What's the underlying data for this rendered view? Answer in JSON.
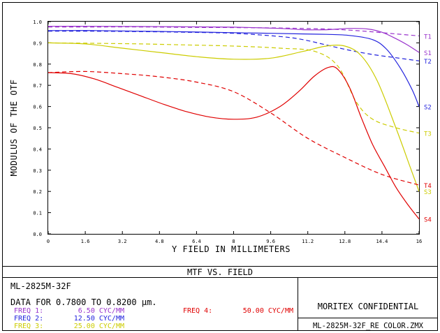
{
  "chart_data": {
    "type": "line",
    "title": "MTF VS. FIELD",
    "xlabel": "Y FIELD IN MILLIMETERS",
    "ylabel": "MODULUS OF THE OTF",
    "xlim": [
      0,
      16
    ],
    "ylim": [
      0,
      1.0
    ],
    "x_ticks": [
      "0",
      "1.6",
      "3.2",
      "4.8",
      "6.4",
      "8",
      "9.6",
      "11.2",
      "12.8",
      "14.4",
      "16"
    ],
    "y_ticks": [
      "0.0",
      "0.1",
      "0.2",
      "0.3",
      "0.4",
      "0.5",
      "0.6",
      "0.7",
      "0.8",
      "0.9",
      "1.0"
    ],
    "grid": false,
    "series": [
      {
        "name": "T1",
        "color": "#9933cc",
        "dash": true,
        "x": [
          0,
          2,
          4,
          6,
          8,
          10,
          12,
          13,
          14,
          15,
          16
        ],
        "y": [
          0.975,
          0.975,
          0.975,
          0.973,
          0.972,
          0.97,
          0.965,
          0.96,
          0.952,
          0.942,
          0.933
        ]
      },
      {
        "name": "S1",
        "color": "#9933cc",
        "dash": false,
        "x": [
          0,
          2,
          4,
          6,
          8,
          10,
          11,
          12,
          13,
          13.8,
          14.4,
          15,
          15.5,
          16
        ],
        "y": [
          0.978,
          0.978,
          0.977,
          0.976,
          0.974,
          0.968,
          0.962,
          0.962,
          0.968,
          0.965,
          0.95,
          0.92,
          0.89,
          0.855
        ]
      },
      {
        "name": "T2",
        "color": "#2222dd",
        "dash": true,
        "x": [
          0,
          2,
          4,
          6,
          8,
          10,
          11,
          12,
          13,
          14,
          15,
          16
        ],
        "y": [
          0.955,
          0.955,
          0.953,
          0.95,
          0.945,
          0.93,
          0.915,
          0.89,
          0.865,
          0.845,
          0.83,
          0.815
        ]
      },
      {
        "name": "S2",
        "color": "#2222dd",
        "dash": false,
        "x": [
          0,
          2,
          4,
          6,
          8,
          9.6,
          11,
          12,
          13,
          14,
          14.6,
          15.2,
          15.7,
          16
        ],
        "y": [
          0.958,
          0.958,
          0.955,
          0.952,
          0.948,
          0.945,
          0.942,
          0.94,
          0.935,
          0.915,
          0.87,
          0.78,
          0.68,
          0.6
        ]
      },
      {
        "name": "T3",
        "color": "#cccc00",
        "dash": true,
        "x": [
          0,
          2,
          4,
          6,
          8,
          10,
          11.5,
          12.5,
          13.3,
          14,
          15,
          16
        ],
        "y": [
          0.9,
          0.898,
          0.895,
          0.89,
          0.885,
          0.875,
          0.86,
          0.79,
          0.62,
          0.54,
          0.5,
          0.475
        ]
      },
      {
        "name": "S3",
        "color": "#cccc00",
        "dash": false,
        "x": [
          0,
          1.6,
          3.2,
          4.8,
          6.4,
          8,
          9.6,
          11,
          12,
          12.8,
          13.5,
          14.2,
          15,
          15.6,
          16
        ],
        "y": [
          0.9,
          0.895,
          0.875,
          0.855,
          0.835,
          0.823,
          0.828,
          0.86,
          0.885,
          0.885,
          0.84,
          0.72,
          0.5,
          0.32,
          0.2
        ]
      },
      {
        "name": "T4",
        "color": "#e00000",
        "dash": true,
        "x": [
          0,
          1.6,
          3.2,
          4.8,
          6.4,
          8,
          9.6,
          11.2,
          12.8,
          14.4,
          16
        ],
        "y": [
          0.76,
          0.765,
          0.755,
          0.74,
          0.715,
          0.67,
          0.57,
          0.45,
          0.36,
          0.28,
          0.23
        ]
      },
      {
        "name": "S4",
        "color": "#e00000",
        "dash": false,
        "x": [
          0,
          1,
          2,
          3,
          4,
          5,
          6,
          7,
          8,
          9,
          10,
          10.8,
          11.5,
          12.1,
          12.5,
          13,
          13.5,
          14,
          14.5,
          15,
          15.5,
          16
        ],
        "y": [
          0.76,
          0.755,
          0.73,
          0.69,
          0.65,
          0.61,
          0.575,
          0.55,
          0.54,
          0.55,
          0.6,
          0.67,
          0.745,
          0.785,
          0.775,
          0.69,
          0.55,
          0.42,
          0.32,
          0.22,
          0.14,
          0.07
        ]
      }
    ]
  },
  "footer": {
    "title": "MTF VS. FIELD",
    "lens_name": "ML-2825M-32F",
    "data_line": "DATA FOR 0.7800 TO 0.8200 µm.",
    "freqs": [
      {
        "label": "FREQ 1:",
        "value": "6.50 CYC/MM",
        "color": "#9933cc"
      },
      {
        "label": "FREQ 2:",
        "value": "12.50 CYC/MM",
        "color": "#2222dd"
      },
      {
        "label": "FREQ 3:",
        "value": "25.00 CYC/MM",
        "color": "#cccc00"
      },
      {
        "label": "FREQ 4:",
        "value": "50.00 CYC/MM",
        "color": "#e00000"
      }
    ],
    "confidential": "MORITEX CONFIDENTIAL",
    "filename": "ML-2825M-32F_RE COLOR.ZMX"
  }
}
